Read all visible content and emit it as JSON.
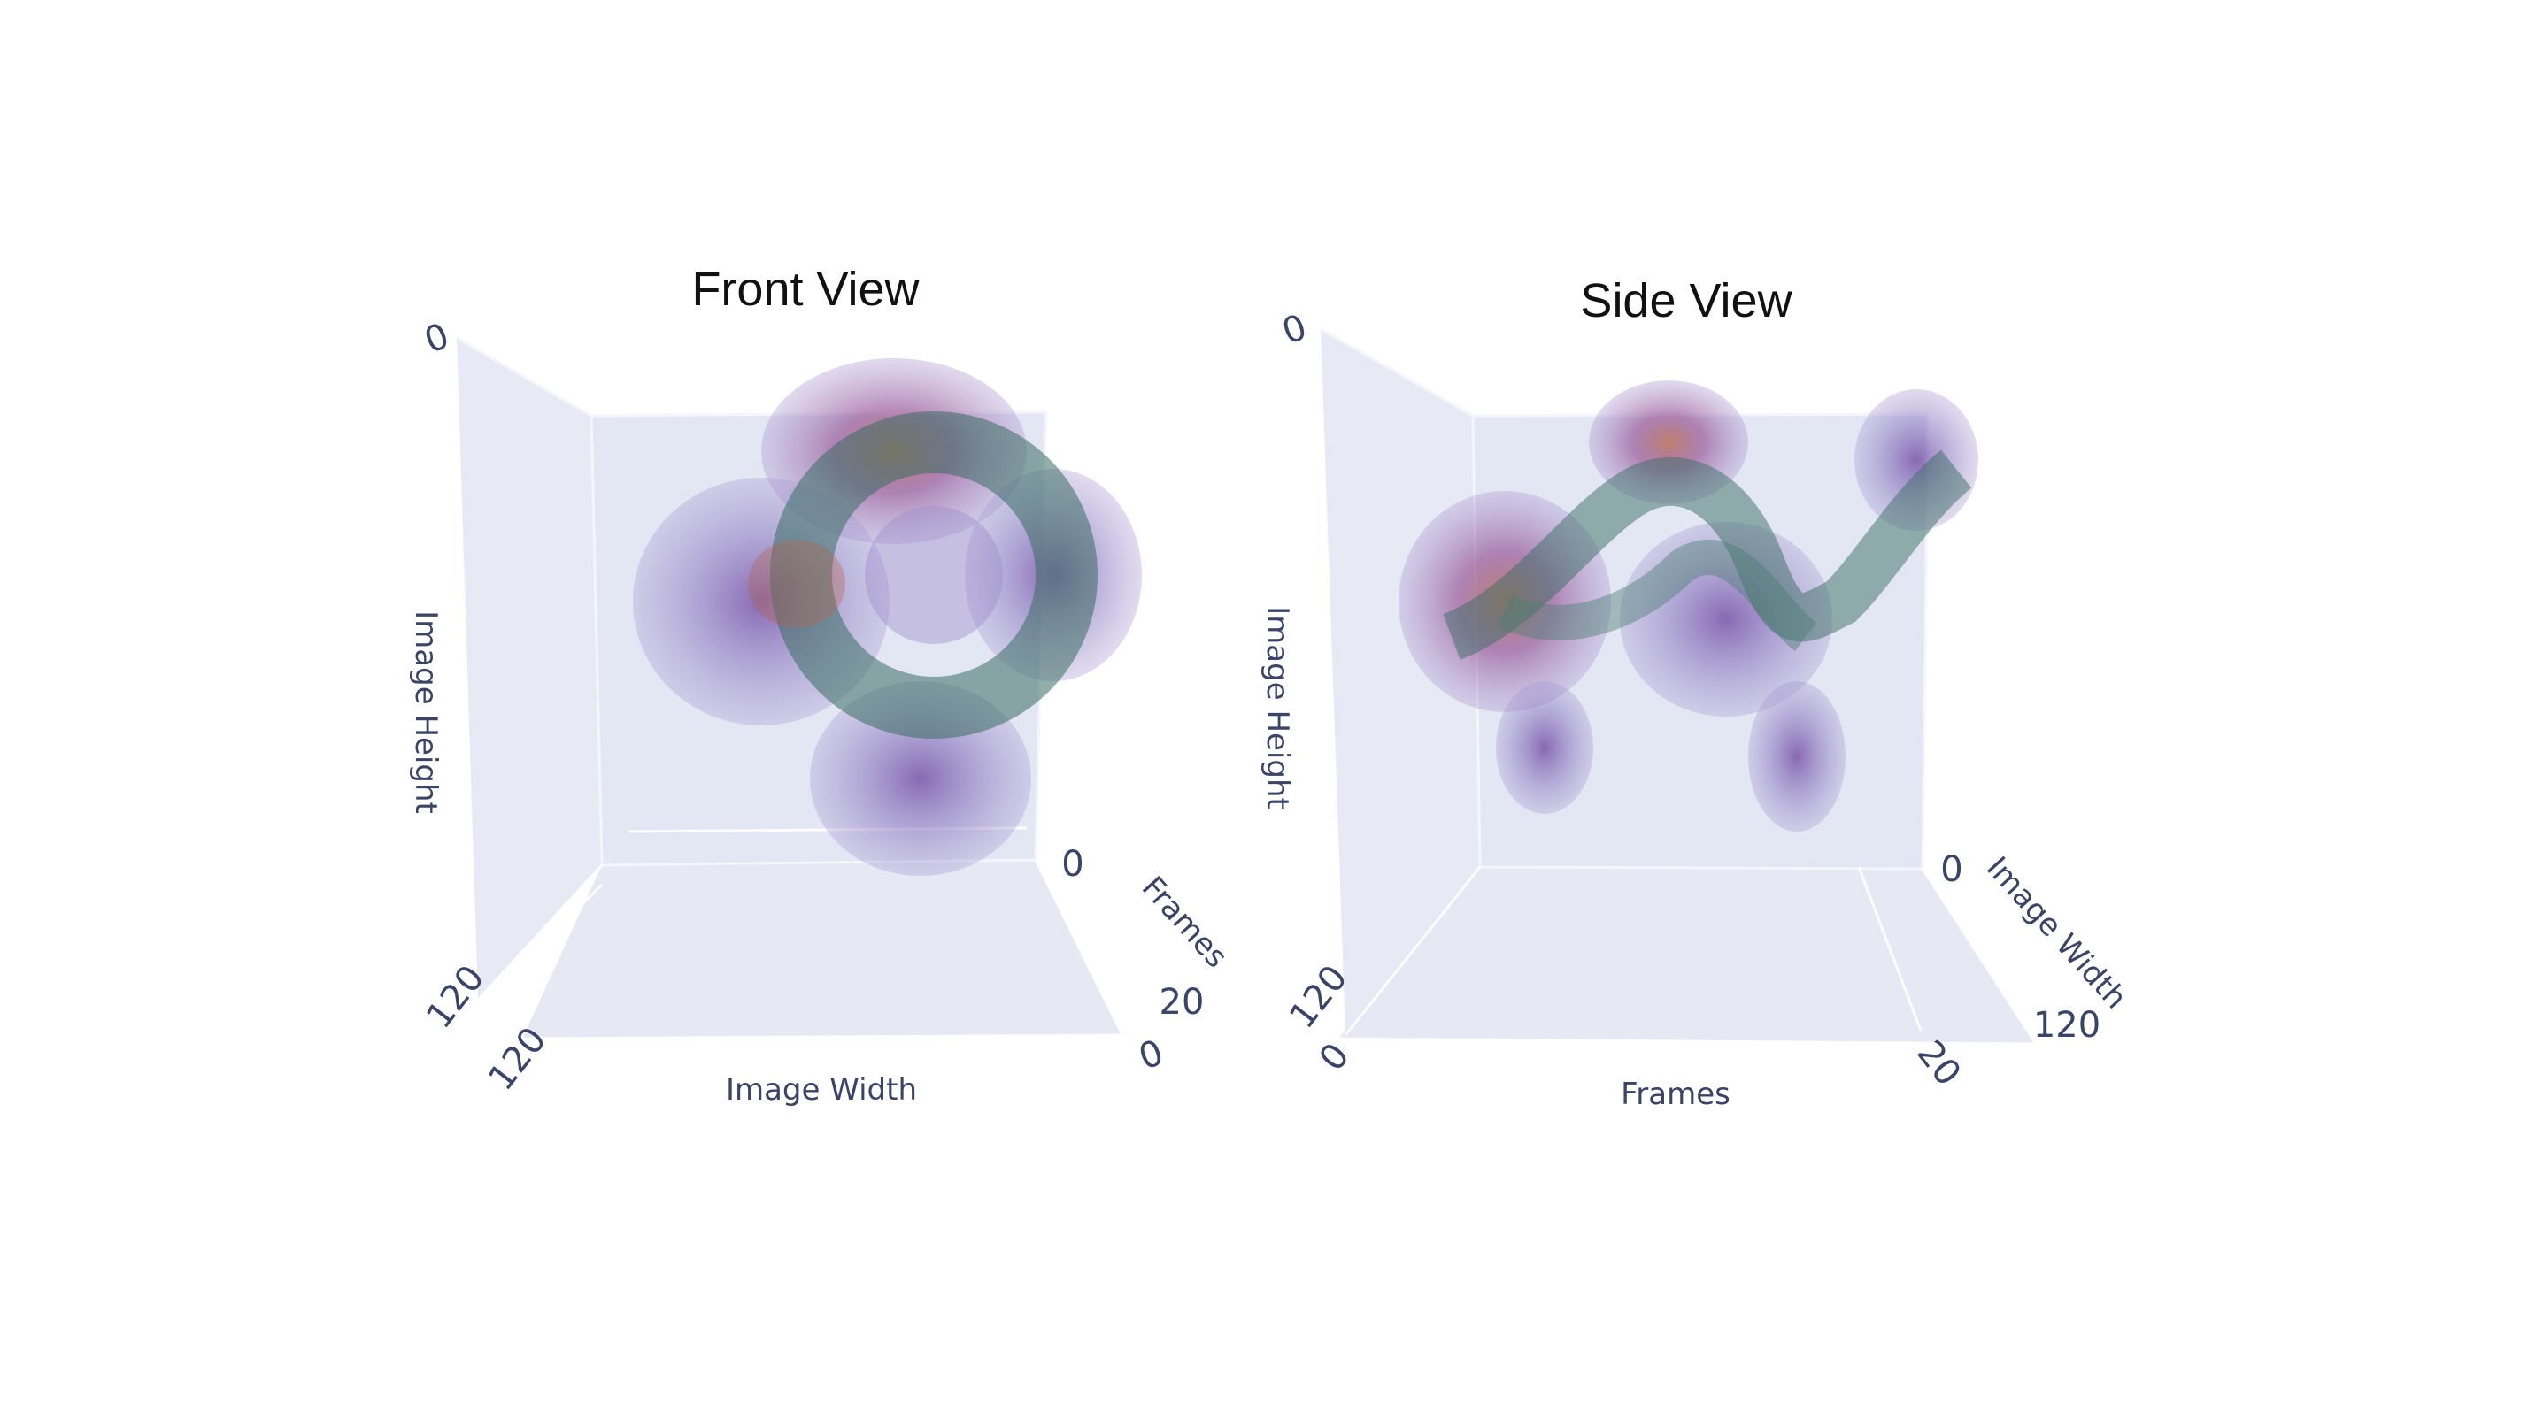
{
  "chart_data": [
    {
      "type": "volume3d",
      "title": "Front View",
      "axes": {
        "x": {
          "label": "Image Width",
          "ticks": [
            "120",
            "0"
          ],
          "range": [
            120,
            0
          ]
        },
        "y": {
          "label": "Image Height",
          "ticks": [
            "0",
            "120"
          ],
          "range": [
            0,
            120
          ]
        },
        "z": {
          "label": "Frames",
          "ticks": [
            "0",
            "20"
          ],
          "range": [
            0,
            20
          ]
        }
      },
      "colorscale": [
        "#7b6bb5",
        "#5d3f9a",
        "#2f6b5c",
        "#b05a4a"
      ],
      "background": "#e6e9f4"
    },
    {
      "type": "volume3d",
      "title": "Side View",
      "axes": {
        "x": {
          "label": "Frames",
          "ticks": [
            "0",
            "20"
          ],
          "range": [
            0,
            20
          ]
        },
        "y": {
          "label": "Image Height",
          "ticks": [
            "0",
            "120"
          ],
          "range": [
            0,
            120
          ]
        },
        "z": {
          "label": "Image Width",
          "ticks": [
            "0",
            "120"
          ],
          "range": [
            0,
            120
          ]
        }
      },
      "colorscale": [
        "#7b6bb5",
        "#5d3f9a",
        "#2f6b5c",
        "#b05a4a"
      ],
      "background": "#e6e9f4"
    }
  ]
}
